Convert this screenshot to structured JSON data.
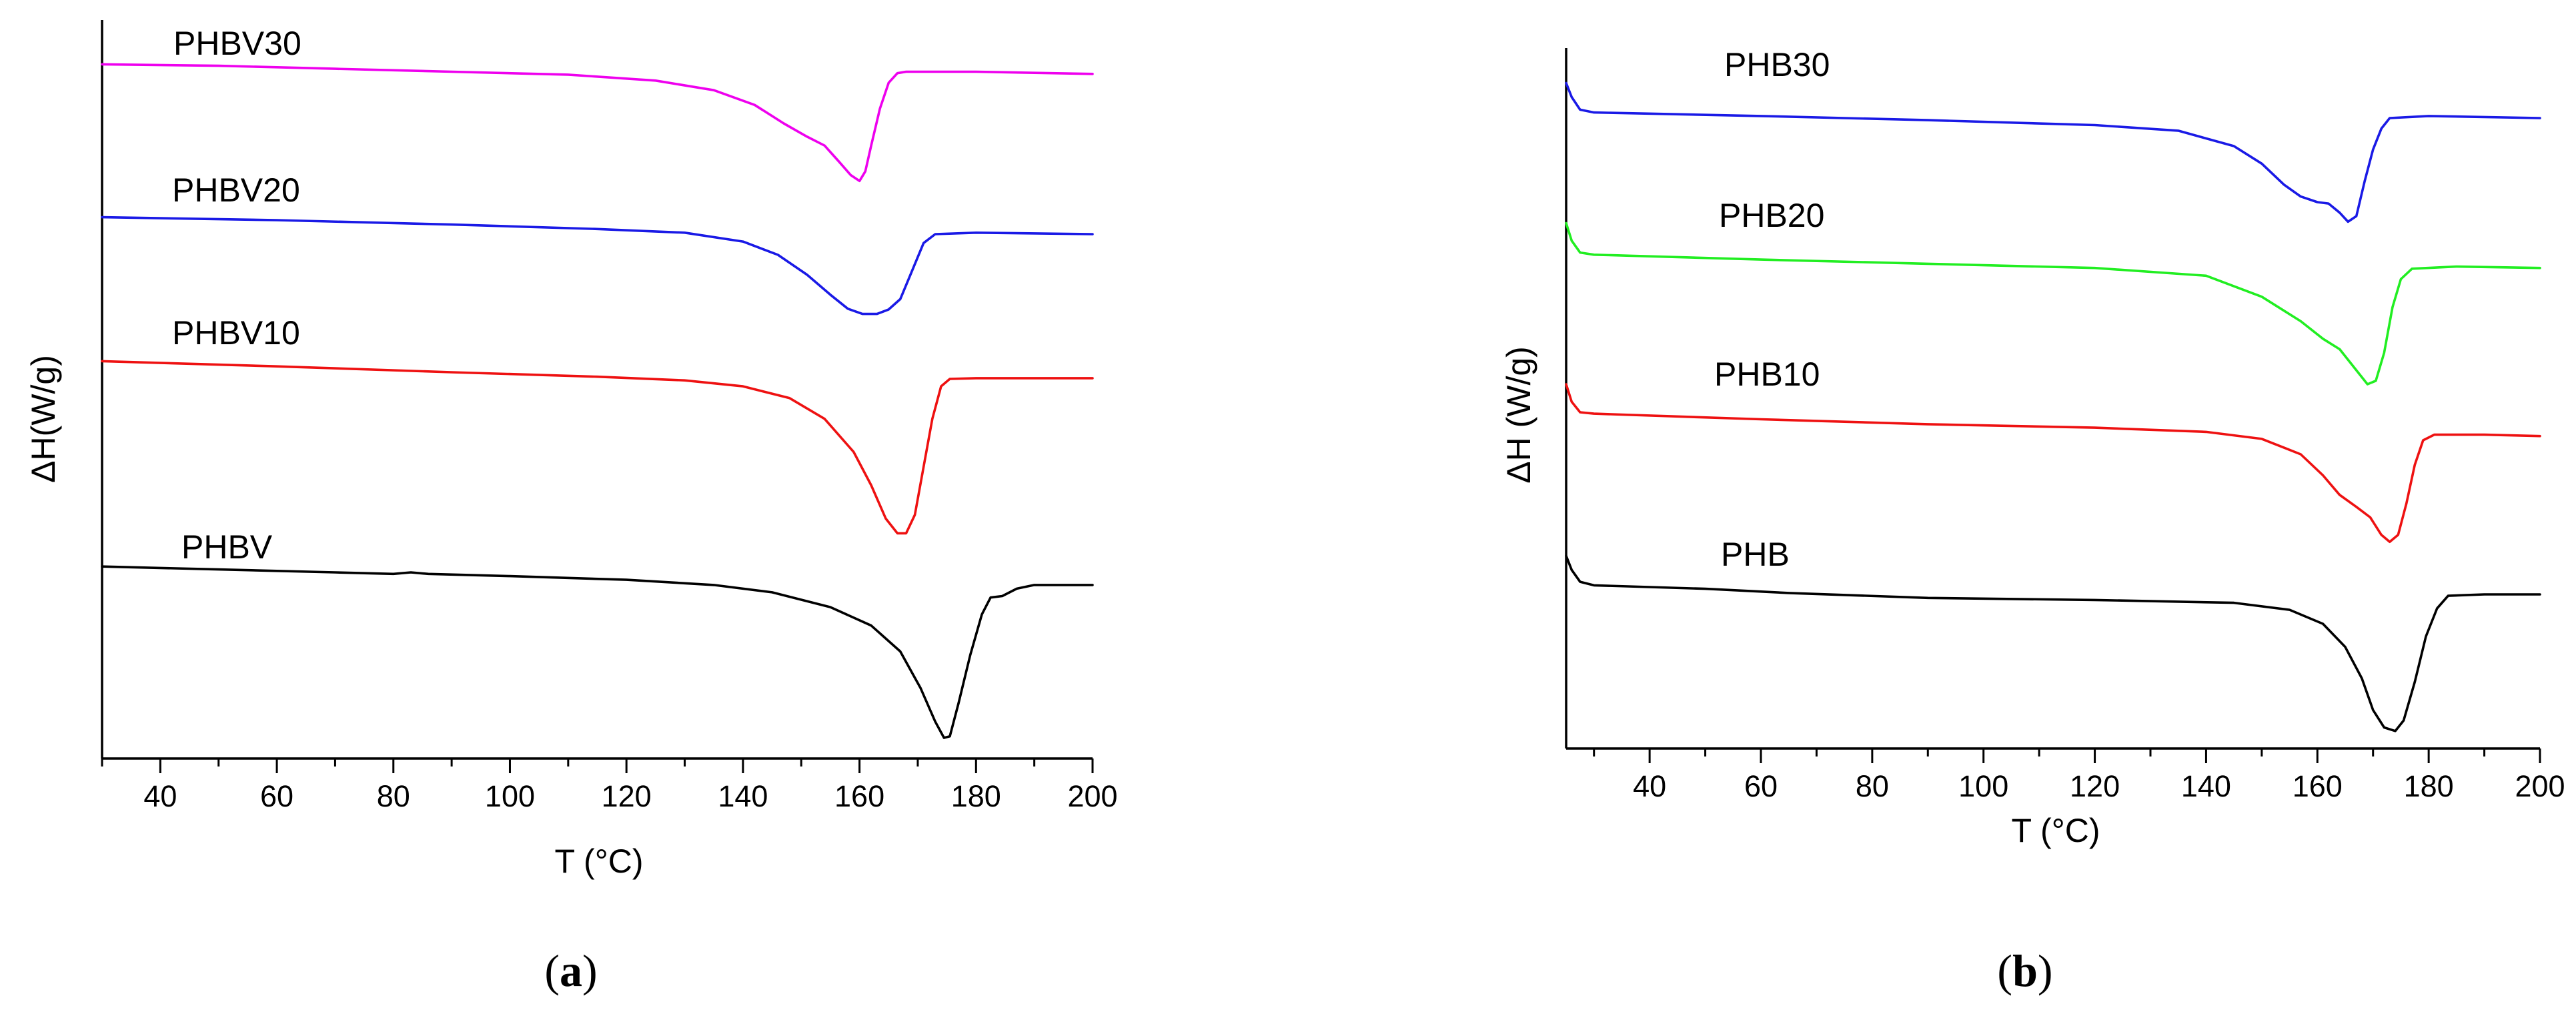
{
  "colors": {
    "magenta": "#ee00ee",
    "blue": "#1a1ae6",
    "red": "#ee1111",
    "black": "#000000",
    "green": "#22ee22"
  },
  "panels": [
    {
      "caption_open": "(",
      "caption_letter": "a",
      "caption_close": ")"
    },
    {
      "caption_open": "(",
      "caption_letter": "b",
      "caption_close": ")"
    }
  ],
  "chart_data": [
    {
      "type": "line",
      "title": "",
      "xlabel": "T (°C)",
      "ylabel": "ΔH(W/g)",
      "xlim": [
        30,
        200
      ],
      "ylim": [
        0,
        10
      ],
      "x_ticks": [
        40,
        60,
        80,
        100,
        120,
        140,
        160,
        180,
        200
      ],
      "y_ticks_shown": false,
      "series": [
        {
          "name": "PHBV30",
          "label": "PHBV30",
          "color": "#ee00ee",
          "points": [
            [
              30,
              9.4
            ],
            [
              50,
              9.38
            ],
            [
              70,
              9.34
            ],
            [
              90,
              9.3
            ],
            [
              110,
              9.26
            ],
            [
              125,
              9.18
            ],
            [
              135,
              9.05
            ],
            [
              142,
              8.85
            ],
            [
              147,
              8.6
            ],
            [
              151,
              8.42
            ],
            [
              154,
              8.3
            ],
            [
              156.5,
              8.08
            ],
            [
              158.5,
              7.9
            ],
            [
              160,
              7.82
            ],
            [
              161,
              7.95
            ],
            [
              162,
              8.3
            ],
            [
              163.5,
              8.8
            ],
            [
              165,
              9.15
            ],
            [
              166.5,
              9.28
            ],
            [
              168,
              9.3
            ],
            [
              180,
              9.3
            ],
            [
              200,
              9.27
            ]
          ]
        },
        {
          "name": "PHBV20",
          "label": "PHBV20",
          "color": "#1a1ae6",
          "points": [
            [
              30,
              7.33
            ],
            [
              60,
              7.29
            ],
            [
              90,
              7.23
            ],
            [
              115,
              7.17
            ],
            [
              130,
              7.12
            ],
            [
              140,
              7.0
            ],
            [
              146,
              6.82
            ],
            [
              151,
              6.55
            ],
            [
              155,
              6.28
            ],
            [
              158,
              6.09
            ],
            [
              160.5,
              6.02
            ],
            [
              163,
              6.02
            ],
            [
              165,
              6.08
            ],
            [
              167,
              6.22
            ],
            [
              169,
              6.6
            ],
            [
              171,
              6.98
            ],
            [
              173,
              7.1
            ],
            [
              180,
              7.12
            ],
            [
              200,
              7.1
            ]
          ]
        },
        {
          "name": "PHBV10",
          "label": "PHBV10",
          "color": "#ee1111",
          "points": [
            [
              30,
              5.38
            ],
            [
              60,
              5.31
            ],
            [
              90,
              5.23
            ],
            [
              115,
              5.17
            ],
            [
              130,
              5.12
            ],
            [
              140,
              5.04
            ],
            [
              148,
              4.88
            ],
            [
              154,
              4.6
            ],
            [
              159,
              4.15
            ],
            [
              162,
              3.7
            ],
            [
              164.5,
              3.25
            ],
            [
              166.5,
              3.05
            ],
            [
              168,
              3.05
            ],
            [
              169.5,
              3.3
            ],
            [
              171,
              3.95
            ],
            [
              172.5,
              4.6
            ],
            [
              174,
              5.04
            ],
            [
              175.5,
              5.14
            ],
            [
              180,
              5.15
            ],
            [
              200,
              5.15
            ]
          ]
        },
        {
          "name": "PHBV",
          "label": "PHBV",
          "color": "#000000",
          "points": [
            [
              30,
              2.6
            ],
            [
              50,
              2.56
            ],
            [
              70,
              2.52
            ],
            [
              80,
              2.5
            ],
            [
              83,
              2.52
            ],
            [
              86,
              2.5
            ],
            [
              100,
              2.47
            ],
            [
              120,
              2.42
            ],
            [
              135,
              2.35
            ],
            [
              145,
              2.25
            ],
            [
              155,
              2.05
            ],
            [
              162,
              1.8
            ],
            [
              167,
              1.45
            ],
            [
              170.5,
              0.95
            ],
            [
              173,
              0.5
            ],
            [
              174.5,
              0.28
            ],
            [
              175.5,
              0.3
            ],
            [
              177,
              0.75
            ],
            [
              179,
              1.4
            ],
            [
              181,
              1.95
            ],
            [
              182.5,
              2.18
            ],
            [
              184.5,
              2.2
            ],
            [
              187,
              2.3
            ],
            [
              190,
              2.35
            ],
            [
              200,
              2.35
            ]
          ]
        }
      ]
    },
    {
      "type": "line",
      "title": "",
      "xlabel": "T (°C)",
      "ylabel": "ΔH (W/g)",
      "xlim": [
        25,
        200
      ],
      "ylim": [
        0,
        10
      ],
      "x_ticks": [
        40,
        60,
        80,
        100,
        120,
        140,
        160,
        180,
        200
      ],
      "y_ticks_shown": false,
      "series": [
        {
          "name": "PHB30",
          "label": "PHB30",
          "color": "#1a1ae6",
          "points": [
            [
              25,
              9.5
            ],
            [
              26,
              9.3
            ],
            [
              27.5,
              9.12
            ],
            [
              30,
              9.08
            ],
            [
              60,
              9.03
            ],
            [
              90,
              8.97
            ],
            [
              120,
              8.9
            ],
            [
              135,
              8.82
            ],
            [
              145,
              8.6
            ],
            [
              150,
              8.35
            ],
            [
              154,
              8.05
            ],
            [
              157,
              7.88
            ],
            [
              160,
              7.8
            ],
            [
              162,
              7.78
            ],
            [
              164,
              7.65
            ],
            [
              165.5,
              7.52
            ],
            [
              167,
              7.6
            ],
            [
              168.5,
              8.1
            ],
            [
              170,
              8.55
            ],
            [
              171.5,
              8.85
            ],
            [
              173,
              9.0
            ],
            [
              180,
              9.03
            ],
            [
              200,
              9.0
            ]
          ]
        },
        {
          "name": "PHB20",
          "label": "PHB20",
          "color": "#22ee22",
          "points": [
            [
              25,
              7.5
            ],
            [
              26,
              7.25
            ],
            [
              27.5,
              7.08
            ],
            [
              30,
              7.05
            ],
            [
              60,
              6.98
            ],
            [
              90,
              6.92
            ],
            [
              120,
              6.86
            ],
            [
              140,
              6.75
            ],
            [
              150,
              6.45
            ],
            [
              157,
              6.1
            ],
            [
              161,
              5.85
            ],
            [
              164,
              5.7
            ],
            [
              167,
              5.4
            ],
            [
              169,
              5.2
            ],
            [
              170.5,
              5.25
            ],
            [
              172,
              5.65
            ],
            [
              173.5,
              6.3
            ],
            [
              175,
              6.7
            ],
            [
              177,
              6.85
            ],
            [
              185,
              6.88
            ],
            [
              200,
              6.86
            ]
          ]
        },
        {
          "name": "PHB10",
          "label": "PHB10",
          "color": "#ee1111",
          "points": [
            [
              25,
              5.2
            ],
            [
              26,
              4.95
            ],
            [
              27.5,
              4.8
            ],
            [
              30,
              4.78
            ],
            [
              60,
              4.7
            ],
            [
              90,
              4.63
            ],
            [
              120,
              4.58
            ],
            [
              140,
              4.52
            ],
            [
              150,
              4.42
            ],
            [
              157,
              4.2
            ],
            [
              161,
              3.9
            ],
            [
              164,
              3.62
            ],
            [
              167,
              3.45
            ],
            [
              169.5,
              3.3
            ],
            [
              171.5,
              3.05
            ],
            [
              173,
              2.95
            ],
            [
              174.5,
              3.05
            ],
            [
              176,
              3.5
            ],
            [
              177.5,
              4.05
            ],
            [
              179,
              4.4
            ],
            [
              181,
              4.48
            ],
            [
              190,
              4.48
            ],
            [
              200,
              4.46
            ]
          ]
        },
        {
          "name": "PHB",
          "label": "PHB",
          "color": "#000000",
          "points": [
            [
              25,
              2.75
            ],
            [
              26,
              2.55
            ],
            [
              27.5,
              2.38
            ],
            [
              30,
              2.33
            ],
            [
              50,
              2.28
            ],
            [
              65,
              2.22
            ],
            [
              90,
              2.15
            ],
            [
              120,
              2.12
            ],
            [
              145,
              2.08
            ],
            [
              155,
              1.98
            ],
            [
              161,
              1.78
            ],
            [
              165,
              1.45
            ],
            [
              168,
              1.0
            ],
            [
              170,
              0.55
            ],
            [
              172,
              0.3
            ],
            [
              174,
              0.25
            ],
            [
              175.5,
              0.4
            ],
            [
              177.5,
              0.95
            ],
            [
              179.5,
              1.6
            ],
            [
              181.5,
              2.0
            ],
            [
              183.5,
              2.18
            ],
            [
              190,
              2.2
            ],
            [
              200,
              2.2
            ]
          ]
        }
      ]
    }
  ]
}
